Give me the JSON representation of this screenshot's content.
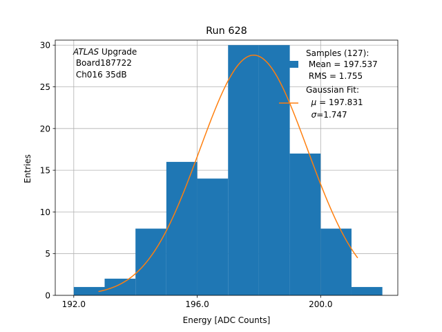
{
  "chart_data": {
    "type": "bar",
    "title": "Run 628",
    "xlabel": "Energy [ADC Counts]",
    "ylabel": "Entries",
    "xlim": [
      191.4,
      202.5
    ],
    "ylim": [
      0,
      30.6
    ],
    "grid": true,
    "x_ticks": [
      192.0,
      196.0,
      200.0
    ],
    "x_tick_labels": [
      "192.0",
      "196.0",
      "200.0"
    ],
    "y_ticks": [
      0,
      5,
      10,
      15,
      20,
      25,
      30
    ],
    "y_tick_labels": [
      "0",
      "5",
      "10",
      "15",
      "20",
      "25",
      "30"
    ],
    "bin_edges": [
      192,
      193,
      194,
      195,
      196,
      197,
      198,
      199,
      200,
      201,
      202
    ],
    "values": [
      1,
      2,
      8,
      16,
      14,
      30,
      30,
      17,
      8,
      1
    ],
    "hist_color": "#1f77b4",
    "fit": {
      "mu": 197.831,
      "sigma": 1.747,
      "amplitude": 28.8,
      "x_range": [
        192.8,
        201.2
      ],
      "color": "#ff7f0e"
    },
    "annotation": {
      "italic": "ATLAS",
      "line1_rest": " Upgrade",
      "line2": " Board187722",
      "line3": " Ch016 35dB"
    },
    "legend": {
      "placement": "top-right",
      "hist_lines": [
        "Samples (127):",
        " Mean = 197.537",
        " RMS = 1.755"
      ],
      "fit_line1": "Gaussian Fit:",
      "fit_line2_sym": "μ",
      "fit_line2_rest": " = 197.831",
      "fit_line3_sym": "σ",
      "fit_line3_rest": "=1.747"
    }
  }
}
